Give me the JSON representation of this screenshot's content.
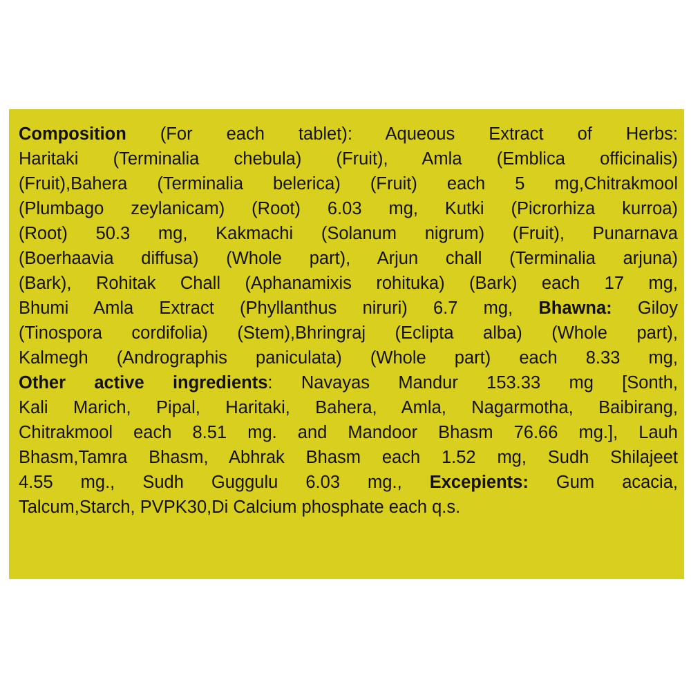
{
  "colors": {
    "background": "#d8cf1e",
    "text": "#141208"
  },
  "lines": [
    [
      {
        "text": "Composition",
        "bold": true
      },
      {
        "text": " (For each tablet): Aqueous Extract of Herbs:",
        "bold": false
      }
    ],
    [
      {
        "text": "Haritaki (Terminalia chebula) (Fruit), Amla (Emblica officinalis)",
        "bold": false
      }
    ],
    [
      {
        "text": "(Fruit),Bahera (Terminalia belerica) (Fruit) each 5 mg,Chitrakmool",
        "bold": false
      }
    ],
    [
      {
        "text": "(Plumbago zeylanicam) (Root) 6.03 mg, Kutki (Picrorhiza kurroa)",
        "bold": false
      }
    ],
    [
      {
        "text": "(Root) 50.3 mg, Kakmachi (Solanum nigrum) (Fruit), Punarnava",
        "bold": false
      }
    ],
    [
      {
        "text": "(Boerhaavia diffusa) (Whole part), Arjun chall (Terminalia arjuna)",
        "bold": false
      }
    ],
    [
      {
        "text": "(Bark), Rohitak Chall (Aphanamixis rohituka) (Bark) each 17 mg,",
        "bold": false
      }
    ],
    [
      {
        "text": "Bhumi Amla Extract (Phyllanthus niruri) 6.7 mg, ",
        "bold": false
      },
      {
        "text": "Bhawna:",
        "bold": true
      },
      {
        "text": " Giloy",
        "bold": false
      }
    ],
    [
      {
        "text": "(Tinospora cordifolia) (Stem),Bhringraj (Eclipta alba) (Whole part),",
        "bold": false
      }
    ],
    [
      {
        "text": "Kalmegh (Andrographis paniculata) (Whole part) each 8.33 mg,",
        "bold": false
      }
    ],
    [
      {
        "text": "Other active ingredients",
        "bold": true
      },
      {
        "text": ": Navayas Mandur 153.33 mg [Sonth,",
        "bold": false
      }
    ],
    [
      {
        "text": "Kali Marich, Pipal, Haritaki, Bahera, Amla, Nagarmotha, Baibirang,",
        "bold": false
      }
    ],
    [
      {
        "text": "Chitrakmool each 8.51 mg. and Mandoor Bhasm 76.66 mg.], Lauh",
        "bold": false
      }
    ],
    [
      {
        "text": "Bhasm,Tamra Bhasm, Abhrak Bhasm each 1.52 mg, Sudh Shilajeet",
        "bold": false
      }
    ],
    [
      {
        "text": "4.55 mg., Sudh Guggulu 6.03 mg., ",
        "bold": false
      },
      {
        "text": "Excepients:",
        "bold": true
      },
      {
        "text": " Gum acacia,",
        "bold": false
      }
    ],
    [
      {
        "text": "Talcum,Starch, PVPK30,Di Calcium phosphate each q.s.",
        "bold": false
      }
    ]
  ]
}
